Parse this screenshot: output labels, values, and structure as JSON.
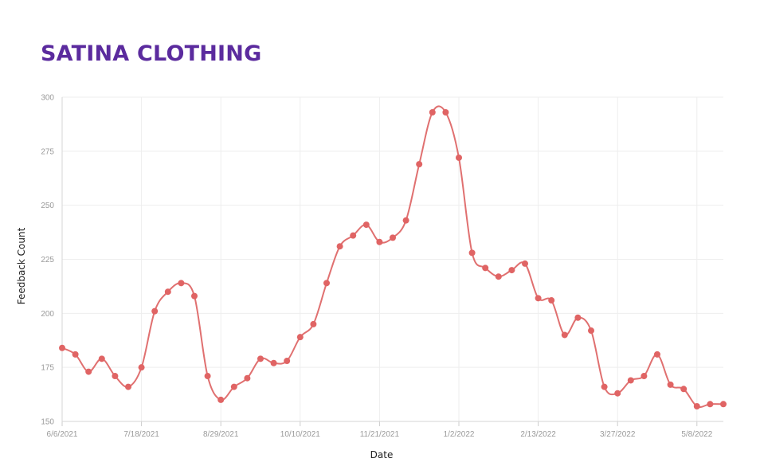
{
  "page": {
    "title": "SATINA CLOTHING"
  },
  "chart_data": {
    "type": "line",
    "title": "SATINA CLOTHING",
    "xlabel": "Date",
    "ylabel": "Feedback Count",
    "ylim": [
      150,
      300
    ],
    "yticks": [
      150,
      175,
      200,
      225,
      250,
      275,
      300
    ],
    "x_tick_labels": [
      "6/6/2021",
      "7/18/2021",
      "8/29/2021",
      "10/10/2021",
      "11/21/2021",
      "1/2/2022",
      "2/13/2022",
      "3/27/2022",
      "5/8/2022"
    ],
    "x_tick_every": 6,
    "grid": true,
    "line_color": "#e07070",
    "marker_color": "#e06464",
    "series": [
      {
        "x": [
          "6/6/2021",
          "6/13/2021",
          "6/20/2021",
          "6/27/2021",
          "7/4/2021",
          "7/11/2021",
          "7/18/2021",
          "7/25/2021",
          "8/1/2021",
          "8/8/2021",
          "8/15/2021",
          "8/22/2021",
          "8/29/2021",
          "9/5/2021",
          "9/12/2021",
          "9/19/2021",
          "9/26/2021",
          "10/3/2021",
          "10/10/2021",
          "10/17/2021",
          "10/24/2021",
          "10/31/2021",
          "11/7/2021",
          "11/14/2021",
          "11/21/2021",
          "11/28/2021",
          "12/5/2021",
          "12/12/2021",
          "12/19/2021",
          "12/26/2021",
          "1/2/2022",
          "1/9/2022",
          "1/16/2022",
          "1/23/2022",
          "1/30/2022",
          "2/6/2022",
          "2/13/2022",
          "2/20/2022",
          "2/27/2022",
          "3/6/2022",
          "3/13/2022",
          "3/20/2022",
          "3/27/2022",
          "4/3/2022",
          "4/10/2022",
          "4/17/2022",
          "4/24/2022",
          "5/1/2022",
          "5/8/2022",
          "5/15/2022",
          "5/22/2022"
        ],
        "values": [
          184,
          181,
          173,
          179,
          171,
          166,
          175,
          201,
          210,
          214,
          208,
          171,
          160,
          166,
          170,
          179,
          177,
          178,
          189,
          195,
          214,
          231,
          236,
          241,
          233,
          235,
          243,
          269,
          293,
          293,
          272,
          228,
          221,
          217,
          220,
          223,
          207,
          206,
          190,
          198,
          192,
          166,
          163,
          169,
          171,
          181,
          167,
          165,
          157,
          158,
          158
        ]
      }
    ]
  }
}
